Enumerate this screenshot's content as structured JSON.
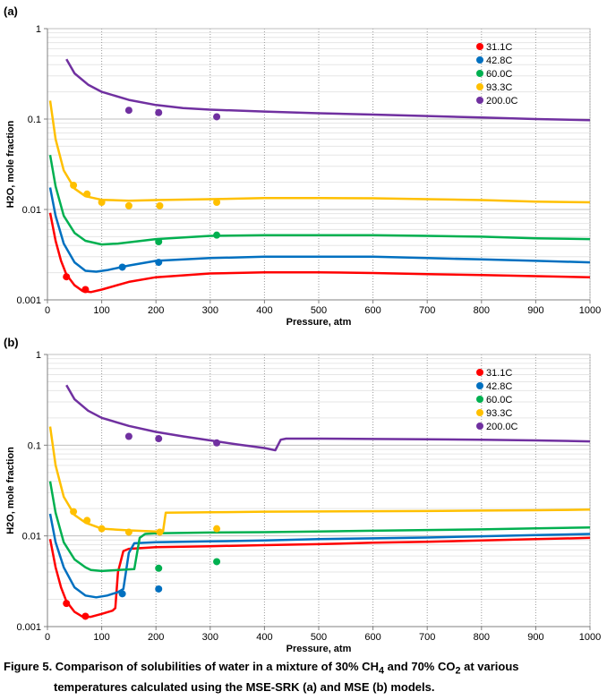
{
  "caption": {
    "line1_parts": [
      "Figure 5. Comparison of solubilities of water in a mixture of 30% CH",
      "4",
      " and 70% CO",
      "2",
      " at various"
    ],
    "line2": "temperatures calculated using the MSE-SRK (a) and MSE (b) models."
  },
  "series_colors": {
    "31.1C": "#ff0000",
    "42.8C": "#0070c0",
    "60.0C": "#00b050",
    "93.3C": "#ffc000",
    "200.0C": "#7030a0"
  },
  "chart_data": [
    {
      "type": "line",
      "panel_label": "(a)",
      "xlabel": "Pressure, atm",
      "ylabel": "H2O, mole fraction",
      "xlim": [
        0,
        1000
      ],
      "ylim": [
        0.001,
        1
      ],
      "yscale": "log",
      "xticks": [
        0,
        100,
        200,
        300,
        400,
        500,
        600,
        700,
        800,
        900,
        1000
      ],
      "yticks": [
        0.001,
        0.01,
        0.1,
        1
      ],
      "ytick_labels": [
        "0.001",
        "0.01",
        "0.1",
        "1"
      ],
      "grid": true,
      "legend_position": "top-right",
      "series": [
        {
          "name": "31.1C",
          "line": [
            [
              5,
              0.0092
            ],
            [
              15,
              0.0045
            ],
            [
              25,
              0.0027
            ],
            [
              35,
              0.0019
            ],
            [
              50,
              0.00145
            ],
            [
              65,
              0.00125
            ],
            [
              80,
              0.00122
            ],
            [
              100,
              0.0013
            ],
            [
              150,
              0.00158
            ],
            [
              200,
              0.00178
            ],
            [
              300,
              0.00196
            ],
            [
              400,
              0.00202
            ],
            [
              500,
              0.00202
            ],
            [
              600,
              0.00198
            ],
            [
              700,
              0.00193
            ],
            [
              800,
              0.00188
            ],
            [
              900,
              0.00183
            ],
            [
              1000,
              0.00178
            ]
          ],
          "points": [
            [
              35,
              0.0018
            ],
            [
              70,
              0.0013
            ]
          ]
        },
        {
          "name": "42.8C",
          "line": [
            [
              5,
              0.0175
            ],
            [
              15,
              0.0085
            ],
            [
              30,
              0.0042
            ],
            [
              50,
              0.0026
            ],
            [
              70,
              0.0021
            ],
            [
              90,
              0.00205
            ],
            [
              110,
              0.00213
            ],
            [
              150,
              0.0024
            ],
            [
              200,
              0.0027
            ],
            [
              300,
              0.0029
            ],
            [
              400,
              0.003
            ],
            [
              500,
              0.003
            ],
            [
              600,
              0.003
            ],
            [
              700,
              0.0029
            ],
            [
              800,
              0.0028
            ],
            [
              900,
              0.0027
            ],
            [
              1000,
              0.0026
            ]
          ],
          "points": [
            [
              138,
              0.0023
            ],
            [
              205,
              0.0026
            ]
          ]
        },
        {
          "name": "60.0C",
          "line": [
            [
              5,
              0.04
            ],
            [
              15,
              0.018
            ],
            [
              30,
              0.0085
            ],
            [
              50,
              0.0055
            ],
            [
              70,
              0.0045
            ],
            [
              100,
              0.0041
            ],
            [
              130,
              0.0042
            ],
            [
              200,
              0.0047
            ],
            [
              300,
              0.0051
            ],
            [
              400,
              0.0052
            ],
            [
              500,
              0.0052
            ],
            [
              600,
              0.0052
            ],
            [
              700,
              0.0051
            ],
            [
              800,
              0.005
            ],
            [
              900,
              0.0048
            ],
            [
              1000,
              0.0047
            ]
          ],
          "points": [
            [
              205,
              0.0044
            ],
            [
              312,
              0.0052
            ]
          ]
        },
        {
          "name": "93.3C",
          "line": [
            [
              5,
              0.16
            ],
            [
              15,
              0.06
            ],
            [
              30,
              0.027
            ],
            [
              50,
              0.017
            ],
            [
              70,
              0.014
            ],
            [
              100,
              0.0128
            ],
            [
              150,
              0.0125
            ],
            [
              200,
              0.0127
            ],
            [
              300,
              0.013
            ],
            [
              400,
              0.0134
            ],
            [
              500,
              0.0134
            ],
            [
              600,
              0.0133
            ],
            [
              700,
              0.013
            ],
            [
              800,
              0.0127
            ],
            [
              900,
              0.0122
            ],
            [
              1000,
              0.012
            ]
          ],
          "points": [
            [
              48,
              0.0185
            ],
            [
              73,
              0.0148
            ],
            [
              100,
              0.012
            ],
            [
              150,
              0.011
            ],
            [
              207,
              0.011
            ],
            [
              312,
              0.012
            ]
          ]
        },
        {
          "name": "200.0C",
          "line": [
            [
              35,
              0.46
            ],
            [
              50,
              0.32
            ],
            [
              75,
              0.24
            ],
            [
              100,
              0.2
            ],
            [
              150,
              0.163
            ],
            [
              200,
              0.143
            ],
            [
              250,
              0.132
            ],
            [
              300,
              0.127
            ],
            [
              400,
              0.121
            ],
            [
              500,
              0.116
            ],
            [
              600,
              0.112
            ],
            [
              700,
              0.108
            ],
            [
              800,
              0.104
            ],
            [
              900,
              0.1
            ],
            [
              1000,
              0.097
            ]
          ],
          "points": [
            [
              150,
              0.125
            ],
            [
              205,
              0.118
            ],
            [
              312,
              0.106
            ]
          ]
        }
      ]
    },
    {
      "type": "line",
      "panel_label": "(b)",
      "xlabel": "Pressure, atm",
      "ylabel": "H2O, mole fraction",
      "xlim": [
        0,
        1000
      ],
      "ylim": [
        0.001,
        1
      ],
      "yscale": "log",
      "xticks": [
        0,
        100,
        200,
        300,
        400,
        500,
        600,
        700,
        800,
        900,
        1000
      ],
      "yticks": [
        0.001,
        0.01,
        0.1,
        1
      ],
      "ytick_labels": [
        "0.001",
        "0.01",
        "0.1",
        "1"
      ],
      "grid": true,
      "legend_position": "top-right",
      "series": [
        {
          "name": "31.1C",
          "line": [
            [
              5,
              0.0092
            ],
            [
              15,
              0.0045
            ],
            [
              25,
              0.0027
            ],
            [
              35,
              0.0019
            ],
            [
              50,
              0.00145
            ],
            [
              65,
              0.00128
            ],
            [
              80,
              0.00128
            ],
            [
              100,
              0.00138
            ],
            [
              120,
              0.0015
            ],
            [
              125,
              0.0016
            ],
            [
              130,
              0.004
            ],
            [
              140,
              0.0068
            ],
            [
              150,
              0.0072
            ],
            [
              200,
              0.0075
            ],
            [
              300,
              0.0077
            ],
            [
              400,
              0.0079
            ],
            [
              500,
              0.0081
            ],
            [
              600,
              0.0084
            ],
            [
              700,
              0.0086
            ],
            [
              800,
              0.0089
            ],
            [
              900,
              0.0092
            ],
            [
              1000,
              0.0095
            ]
          ],
          "points": [
            [
              35,
              0.0018
            ],
            [
              70,
              0.0013
            ]
          ]
        },
        {
          "name": "42.8C",
          "line": [
            [
              5,
              0.0175
            ],
            [
              15,
              0.0085
            ],
            [
              30,
              0.0045
            ],
            [
              50,
              0.0027
            ],
            [
              70,
              0.0022
            ],
            [
              90,
              0.0021
            ],
            [
              110,
              0.0022
            ],
            [
              130,
              0.0024
            ],
            [
              140,
              0.0026
            ],
            [
              150,
              0.0065
            ],
            [
              160,
              0.0083
            ],
            [
              200,
              0.0085
            ],
            [
              300,
              0.0087
            ],
            [
              400,
              0.0089
            ],
            [
              500,
              0.0092
            ],
            [
              600,
              0.0094
            ],
            [
              700,
              0.0096
            ],
            [
              800,
              0.0099
            ],
            [
              900,
              0.0102
            ],
            [
              1000,
              0.0105
            ]
          ],
          "points": [
            [
              138,
              0.0023
            ],
            [
              205,
              0.0026
            ]
          ]
        },
        {
          "name": "60.0C",
          "line": [
            [
              5,
              0.04
            ],
            [
              15,
              0.018
            ],
            [
              30,
              0.0085
            ],
            [
              50,
              0.0055
            ],
            [
              70,
              0.0045
            ],
            [
              80,
              0.0042
            ],
            [
              100,
              0.0041
            ],
            [
              130,
              0.0042
            ],
            [
              160,
              0.0043
            ],
            [
              170,
              0.0095
            ],
            [
              180,
              0.0105
            ],
            [
              200,
              0.0107
            ],
            [
              300,
              0.0109
            ],
            [
              400,
              0.011
            ],
            [
              500,
              0.0112
            ],
            [
              600,
              0.0114
            ],
            [
              700,
              0.0116
            ],
            [
              800,
              0.0118
            ],
            [
              900,
              0.0121
            ],
            [
              1000,
              0.0124
            ]
          ],
          "points": [
            [
              205,
              0.0044
            ],
            [
              312,
              0.0052
            ]
          ]
        },
        {
          "name": "93.3C",
          "line": [
            [
              5,
              0.16
            ],
            [
              15,
              0.06
            ],
            [
              30,
              0.027
            ],
            [
              50,
              0.017
            ],
            [
              70,
              0.014
            ],
            [
              100,
              0.012
            ],
            [
              150,
              0.0115
            ],
            [
              200,
              0.0112
            ],
            [
              213,
              0.0112
            ],
            [
              218,
              0.018
            ],
            [
              300,
              0.0182
            ],
            [
              400,
              0.0185
            ],
            [
              500,
              0.0186
            ],
            [
              600,
              0.0187
            ],
            [
              700,
              0.0188
            ],
            [
              800,
              0.019
            ],
            [
              900,
              0.0192
            ],
            [
              1000,
              0.0195
            ]
          ],
          "points": [
            [
              48,
              0.0185
            ],
            [
              73,
              0.0148
            ],
            [
              100,
              0.012
            ],
            [
              150,
              0.011
            ],
            [
              207,
              0.011
            ],
            [
              312,
              0.012
            ]
          ]
        },
        {
          "name": "200.0C",
          "line": [
            [
              35,
              0.46
            ],
            [
              50,
              0.32
            ],
            [
              75,
              0.24
            ],
            [
              100,
              0.2
            ],
            [
              150,
              0.163
            ],
            [
              200,
              0.14
            ],
            [
              250,
              0.125
            ],
            [
              300,
              0.113
            ],
            [
              350,
              0.102
            ],
            [
              400,
              0.093
            ],
            [
              420,
              0.088
            ],
            [
              430,
              0.115
            ],
            [
              440,
              0.118
            ],
            [
              500,
              0.118
            ],
            [
              600,
              0.117
            ],
            [
              700,
              0.116
            ],
            [
              800,
              0.115
            ],
            [
              900,
              0.113
            ],
            [
              1000,
              0.11
            ]
          ],
          "points": [
            [
              150,
              0.125
            ],
            [
              205,
              0.118
            ],
            [
              312,
              0.106
            ]
          ]
        }
      ]
    }
  ]
}
